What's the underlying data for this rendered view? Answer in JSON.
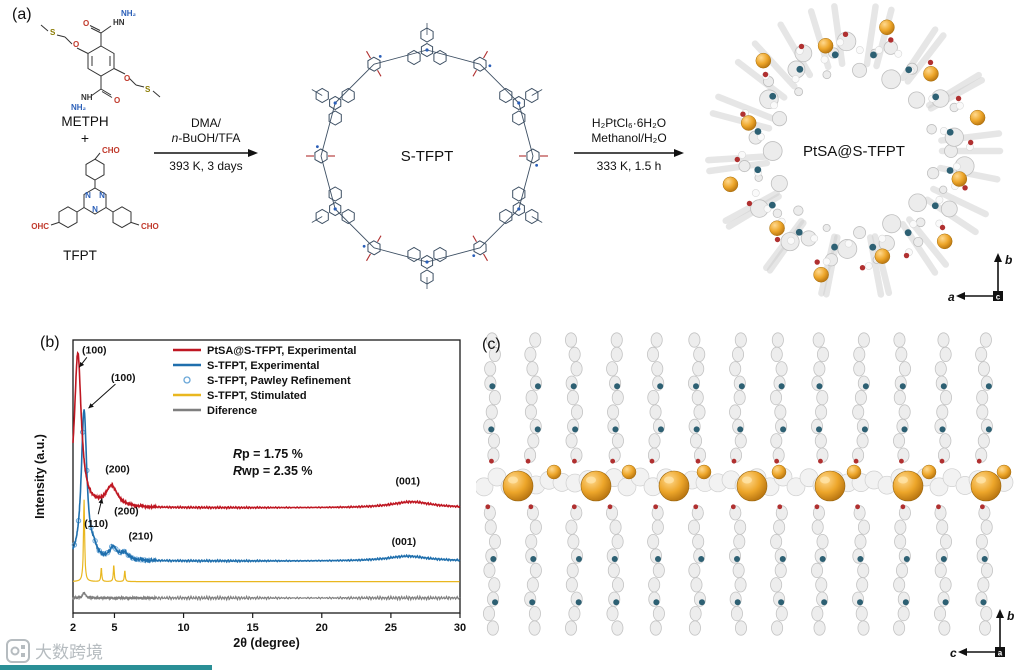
{
  "colors": {
    "red": "#bf1722",
    "blue": "#1f6fad",
    "pawley_blue": "#6aa7d8",
    "yellow": "#e9b71f",
    "gray": "#7f7f7f",
    "orange": "#eda62a",
    "teal_dot": "#2d6073",
    "red_dot": "#b03030",
    "bond": "#3d4f63",
    "n_blue": "#2b5fb8",
    "accent_bar": "#2a8f96"
  },
  "panel_a": {
    "label": "(a)",
    "metph": {
      "name": "METPH",
      "nh2": "NH₂",
      "hn": "HN",
      "nh": "NH",
      "o": "O",
      "s": "S"
    },
    "plus": "+",
    "tfpt": {
      "name": "TFPT",
      "cho": "CHO",
      "ohc": "OHC",
      "n": "N"
    },
    "arrow1": {
      "top1": "DMA/",
      "top2_italic": "n",
      "top2_rest": "-BuOH/TFA",
      "bottom": "393 K, 3 days"
    },
    "macrocycle_label": "S-TFPT",
    "arrow2": {
      "top1": "H₂PtCl₆·6H₂O",
      "top2": "Methanol/H₂O",
      "bottom": "333 K, 1.5 h"
    },
    "product_label": "PtSA@S-TFPT",
    "axes": {
      "up": "b",
      "left": "a",
      "out": "c"
    }
  },
  "panel_b": {
    "label": "(b)"
  },
  "panel_c": {
    "label": "(c)",
    "axes": {
      "up": "b",
      "left": "c",
      "out": "a"
    }
  },
  "watermark": {
    "text": "大数跨境"
  },
  "chart_data": {
    "type": "line",
    "title": "",
    "xlabel": "2θ (degree)",
    "ylabel": "Intensity (a.u.)",
    "xlim": [
      2,
      30
    ],
    "xticks": [
      2,
      5,
      10,
      15,
      20,
      25,
      30
    ],
    "ylim": [
      0,
      1
    ],
    "grid": false,
    "legend_position": "top-right-inside",
    "annotations": [
      {
        "pre": "R",
        "rest": "p = 1.75 %"
      },
      {
        "pre": "R",
        "rest": "wp = 2.35 %"
      }
    ],
    "peak_labels": [
      {
        "text": "(100)",
        "fx": 0.055,
        "fy": 0.95,
        "ax": 0.016,
        "ay": 0.9
      },
      {
        "text": "(100)",
        "fx": 0.13,
        "fy": 0.85,
        "ax": 0.04,
        "ay": 0.75
      },
      {
        "text": "(200)",
        "fx": 0.115,
        "fy": 0.515
      },
      {
        "text": "(001)",
        "fx": 0.865,
        "fy": 0.47
      },
      {
        "text": "(110)",
        "fx": 0.06,
        "fy": 0.315,
        "ax": 0.075,
        "ay": 0.42
      },
      {
        "text": "(200)",
        "fx": 0.138,
        "fy": 0.36
      },
      {
        "text": "(210)",
        "fx": 0.175,
        "fy": 0.27
      },
      {
        "text": "(001)",
        "fx": 0.855,
        "fy": 0.25
      }
    ],
    "series": [
      {
        "name": "PtSA@S-TFPT, Experimental",
        "color": "#bf1722",
        "style": "line",
        "baseline": 0.385,
        "noise": 0.004,
        "peaks": [
          {
            "center": 2.35,
            "height": 0.565,
            "width": 0.3
          },
          {
            "center": 4.8,
            "height": 0.075,
            "width": 0.5
          },
          {
            "center": 26.5,
            "height": 0.022,
            "width": 1.8
          }
        ]
      },
      {
        "name": "S-TFPT, Experimental",
        "color": "#1f6fad",
        "style": "line",
        "baseline": 0.19,
        "noise": 0.004,
        "peaks": [
          {
            "center": 2.8,
            "height": 0.55,
            "width": 0.24
          },
          {
            "center": 3.5,
            "height": 0.03,
            "width": 0.25
          },
          {
            "center": 4.9,
            "height": 0.045,
            "width": 0.3
          },
          {
            "center": 5.7,
            "height": 0.026,
            "width": 0.35
          },
          {
            "center": 26.2,
            "height": 0.018,
            "width": 1.8
          }
        ]
      },
      {
        "name": "S-TFPT, Pawley Refinement",
        "color": "#6aa7d8",
        "style": "scatter",
        "baseline": 0.19,
        "noise": 0,
        "scatter_xmax": 7.5,
        "peaks": [
          {
            "center": 2.8,
            "height": 0.55,
            "width": 0.24
          },
          {
            "center": 3.5,
            "height": 0.03,
            "width": 0.25
          },
          {
            "center": 4.9,
            "height": 0.045,
            "width": 0.3
          },
          {
            "center": 5.7,
            "height": 0.026,
            "width": 0.35
          }
        ]
      },
      {
        "name": "S-TFPT, Stimulated",
        "color": "#e9b71f",
        "style": "line",
        "baseline": 0.115,
        "noise": 0,
        "peaks": [
          {
            "center": 2.8,
            "height": 0.3,
            "width": 0.05
          },
          {
            "center": 4.05,
            "height": 0.05,
            "width": 0.04
          },
          {
            "center": 4.95,
            "height": 0.06,
            "width": 0.04
          },
          {
            "center": 5.75,
            "height": 0.04,
            "width": 0.04
          }
        ]
      },
      {
        "name": "Diference",
        "color": "#7f7f7f",
        "style": "line",
        "baseline": 0.055,
        "noise": 0.007,
        "peaks": [
          {
            "center": 2.8,
            "height": 0.02,
            "width": 0.12
          }
        ]
      }
    ]
  }
}
